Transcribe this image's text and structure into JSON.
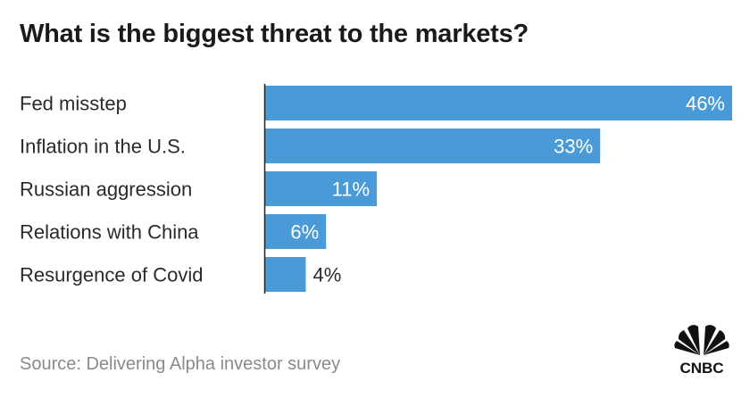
{
  "chart_data": {
    "type": "bar",
    "orientation": "horizontal",
    "title": "What is the biggest threat to the markets?",
    "categories": [
      "Fed misstep",
      "Inflation in the U.S.",
      "Russian aggression",
      "Relations with China",
      "Resurgence of Covid"
    ],
    "values": [
      46,
      33,
      11,
      6,
      4
    ],
    "value_labels": [
      "46%",
      "33%",
      "11%",
      "6%",
      "4%"
    ],
    "xlim": [
      0,
      46
    ],
    "xlabel": "",
    "ylabel": "",
    "grid": false,
    "bar_color": "#4a9ad8"
  },
  "source": "Source: Delivering Alpha investor survey",
  "logo_text": "CNBC"
}
